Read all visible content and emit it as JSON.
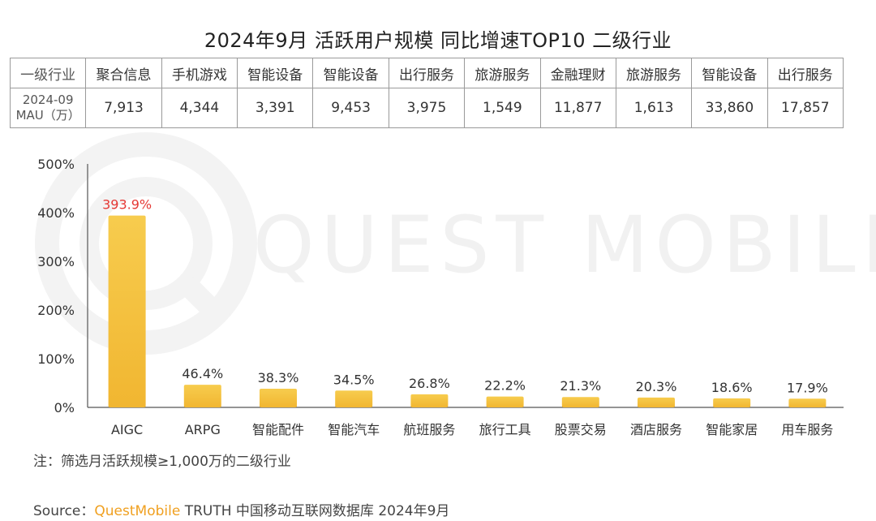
{
  "title": "2024年9月 活跃用户规模 同比增速TOP10 二级行业",
  "table": {
    "row1_label": "一级行业",
    "row2_label_line1": "2024-09",
    "row2_label_line2": "MAU（万）",
    "industries": [
      "聚合信息",
      "手机游戏",
      "智能设备",
      "智能设备",
      "出行服务",
      "旅游服务",
      "金融理财",
      "旅游服务",
      "智能设备",
      "出行服务"
    ],
    "mau": [
      "7,913",
      "4,344",
      "3,391",
      "9,453",
      "3,975",
      "1,549",
      "11,877",
      "1,613",
      "33,860",
      "17,857"
    ]
  },
  "watermark": "QUEST MOBILE",
  "chart_data": {
    "type": "bar",
    "categories": [
      "AIGC",
      "ARPG",
      "智能配件",
      "智能汽车",
      "航班服务",
      "旅行工具",
      "股票交易",
      "酒店服务",
      "智能家居",
      "用车服务"
    ],
    "values": [
      393.9,
      46.4,
      38.3,
      34.5,
      26.8,
      22.2,
      21.3,
      20.3,
      18.6,
      17.9
    ],
    "value_labels": [
      "393.9%",
      "46.4%",
      "38.3%",
      "34.5%",
      "26.8%",
      "22.2%",
      "21.3%",
      "20.3%",
      "18.6%",
      "17.9%"
    ],
    "yticks": [
      "0%",
      "100%",
      "200%",
      "300%",
      "400%",
      "500%"
    ],
    "ylim": [
      0,
      500
    ],
    "highlight_color": "#e53935",
    "bar_color": "#f5c242",
    "xlabel": "",
    "ylabel": ""
  },
  "note": "注：筛选月活跃规模≥1,000万的二级行业",
  "source": {
    "prefix": "Source：",
    "brand": "QuestMobile",
    "rest": " TRUTH 中国移动互联网数据库 2024年9月"
  }
}
